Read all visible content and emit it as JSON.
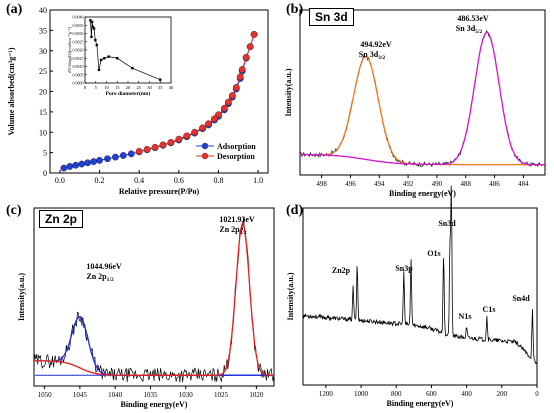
{
  "chart_data": [
    {
      "type": "scatter",
      "panel": "(a)",
      "xlabel": "Relative pressure(P/Po)",
      "ylabel": "Volume absorbed(cm³g⁻¹)",
      "xlim": [
        -0.05,
        1.05
      ],
      "ylim": [
        0,
        40
      ],
      "xticks": [
        "0.0",
        "0.2",
        "0.4",
        "0.6",
        "0.8",
        "1.0"
      ],
      "yticks": [
        "0",
        "5",
        "10",
        "15",
        "20",
        "25",
        "30",
        "35",
        "40"
      ],
      "legend_position": "lower-right",
      "series": [
        {
          "name": "Adsorption",
          "color": "#1f3fd6",
          "x": [
            0.02,
            0.05,
            0.08,
            0.11,
            0.14,
            0.17,
            0.2,
            0.24,
            0.28,
            0.32,
            0.36,
            0.4,
            0.44,
            0.48,
            0.52,
            0.56,
            0.6,
            0.64,
            0.68,
            0.72,
            0.75,
            0.78,
            0.8,
            0.83,
            0.85,
            0.87,
            0.89,
            0.91,
            0.92,
            0.94,
            0.96,
            0.98
          ],
          "y": [
            1.2,
            1.6,
            1.9,
            2.2,
            2.5,
            2.8,
            3.1,
            3.5,
            3.9,
            4.3,
            4.7,
            5.2,
            5.7,
            6.2,
            6.8,
            7.4,
            8.1,
            8.9,
            9.8,
            10.9,
            11.8,
            13.0,
            13.9,
            15.5,
            17.0,
            18.6,
            20.6,
            23.2,
            25.0,
            28.2,
            31.0,
            34.0
          ]
        },
        {
          "name": "Desorption",
          "color": "#e8312a",
          "x": [
            0.98,
            0.96,
            0.94,
            0.92,
            0.91,
            0.89,
            0.87,
            0.85,
            0.83,
            0.8,
            0.78,
            0.75,
            0.72,
            0.68,
            0.64,
            0.6,
            0.56,
            0.52,
            0.48,
            0.44,
            0.4
          ],
          "y": [
            34.0,
            31.0,
            28.4,
            25.4,
            23.6,
            21.0,
            19.0,
            17.4,
            15.9,
            14.3,
            13.3,
            12.1,
            11.1,
            10.0,
            9.1,
            8.3,
            7.5,
            6.9,
            6.3,
            5.8,
            5.3
          ]
        }
      ],
      "inset": {
        "type": "line",
        "xlabel": "Pore diameter(nm)",
        "ylabel": "dV/dlog(D)(cm³nm⁻¹g⁻¹)",
        "xlim": [
          0,
          40
        ],
        "ylim": [
          0,
          0.004
        ],
        "xticks": [
          "0",
          "5",
          "10",
          "15",
          "20",
          "25",
          "30",
          "35",
          "40"
        ],
        "yticks": [
          "0.0000",
          "0.0005",
          "0.0010",
          "0.0015",
          "0.0020",
          "0.0025",
          "0.0030",
          "0.0035",
          "0.0040"
        ],
        "x": [
          2.5,
          3.0,
          3.3,
          3.7,
          4.2,
          4.8,
          5.5,
          6.5,
          7.5,
          9.0,
          11.0,
          15.0,
          22.0,
          35.0
        ],
        "y": [
          0.0038,
          0.0028,
          0.0037,
          0.0034,
          0.0033,
          0.0026,
          0.0023,
          0.0008,
          0.0014,
          0.0015,
          0.0016,
          0.0015,
          0.0009,
          0.0002
        ]
      }
    },
    {
      "type": "line",
      "panel": "(b)",
      "title": "Sn 3d",
      "xlabel": "Binding energy(eV)",
      "ylabel": "Intensity(a.u.)",
      "xlim": [
        499.5,
        482.5
      ],
      "xticks": [
        "498",
        "496",
        "494",
        "492",
        "490",
        "488",
        "486",
        "484"
      ],
      "annotations": [
        {
          "energy": "494.92eV",
          "label": "Sn 3d",
          "sub": "3/2"
        },
        {
          "energy": "486.53eV",
          "label": "Sn 3d",
          "sub": "5/2"
        }
      ],
      "peaks": [
        {
          "center": 494.92,
          "height": 0.7,
          "width": 0.85,
          "color": "#f07a1d"
        },
        {
          "center": 486.53,
          "height": 0.9,
          "width": 0.85,
          "color": "#d21bd2"
        }
      ],
      "background": {
        "left": 0.1,
        "right": 0.03
      },
      "colors": {
        "raw": "#000000",
        "fit": "#000000",
        "background": "#e23ad9"
      }
    },
    {
      "type": "line",
      "panel": "(c)",
      "title": "Zn 2p",
      "xlabel": "Binding energy(eV)",
      "ylabel": "Intensity(a.u.)",
      "xlim": [
        1051.5,
        1017.5
      ],
      "xticks": [
        "1050",
        "1045",
        "1040",
        "1035",
        "1030",
        "1025",
        "1020"
      ],
      "annotations": [
        {
          "energy": "1044.96eV",
          "label": "Zn 2p",
          "sub": "1/2"
        },
        {
          "energy": "1021.93eV",
          "label": "Zn 2p",
          "sub": "3/2"
        }
      ],
      "peaks": [
        {
          "center": 1044.96,
          "height": 0.32,
          "width": 1.15,
          "color": "#1a2fd8"
        },
        {
          "center": 1021.93,
          "height": 0.95,
          "width": 0.95,
          "color": "#e3211e"
        }
      ],
      "background": {
        "left": 0.12,
        "right": 0.03
      },
      "colors": {
        "raw": "#000000",
        "fit": "#000000",
        "background": "#e3211e",
        "baseline": "#1a2fd8"
      }
    },
    {
      "type": "line",
      "panel": "(d)",
      "xlabel": "Binding energy(eV)",
      "ylabel": "Intensity(a.u.)",
      "xlim": [
        1330,
        0
      ],
      "xticks": [
        "1200",
        "1000",
        "800",
        "600",
        "400",
        "200",
        "0"
      ],
      "peak_labels": [
        "Zn2p",
        "Sn3p",
        "O1s",
        "Sn3d",
        "N1s",
        "C1s",
        "Sn4d"
      ],
      "peaks": [
        {
          "label": "Zn2p",
          "center": 1045,
          "height": 0.2
        },
        {
          "label": "Zn2p",
          "center": 1022,
          "height": 0.34
        },
        {
          "label": "Sn3p",
          "center": 757,
          "height": 0.32
        },
        {
          "label": "Sn3p",
          "center": 716,
          "height": 0.4
        },
        {
          "label": "O1s",
          "center": 531,
          "height": 0.48
        },
        {
          "label": "Sn3d",
          "center": 495,
          "height": 0.52
        },
        {
          "label": "Sn3d",
          "center": 487,
          "height": 0.88
        },
        {
          "label": "N1s",
          "center": 400,
          "height": 0.06
        },
        {
          "label": "C1s",
          "center": 285,
          "height": 0.14
        },
        {
          "label": "Sn4d",
          "center": 26,
          "height": 0.3
        }
      ]
    }
  ]
}
